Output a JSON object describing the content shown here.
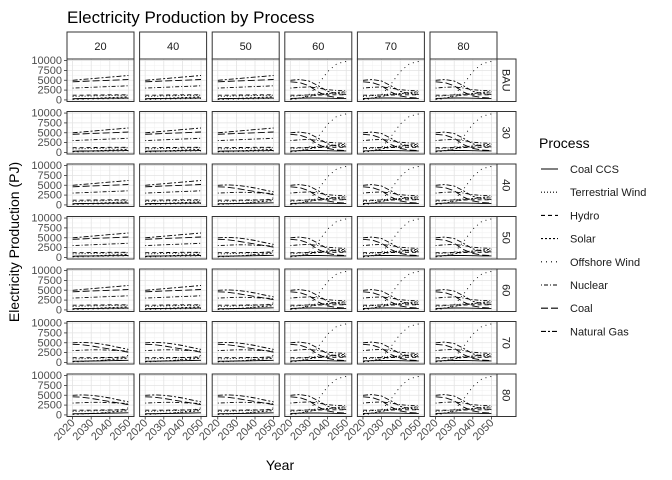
{
  "chart_data": {
    "type": "line",
    "title": "Electricity Production by Process",
    "xlabel": "Year",
    "ylabel": "Electricity Production (PJ)",
    "legend_title": "Process",
    "legend_position": "right",
    "grid": true,
    "col_facets": [
      "20",
      "40",
      "50",
      "60",
      "70",
      "80"
    ],
    "row_facets": [
      "BAU",
      "30",
      "40",
      "50",
      "60",
      "70",
      "80"
    ],
    "x": [
      2020,
      2025,
      2030,
      2035,
      2040,
      2045,
      2050
    ],
    "xticks": [
      2020,
      2030,
      2040,
      2050
    ],
    "xlim": [
      2017,
      2053
    ],
    "yticks": [
      0,
      2500,
      5000,
      7500,
      10000
    ],
    "ytick_labels": [
      "0",
      "2500",
      "5000",
      "7500",
      "10000"
    ],
    "ylim": [
      -400,
      10400
    ],
    "processes": [
      {
        "name": "Coal CCS",
        "dash": "solid"
      },
      {
        "name": "Terrestrial Wind",
        "dash": "dotted"
      },
      {
        "name": "Hydro",
        "dash": "dashed"
      },
      {
        "name": "Solar",
        "dash": "shortdash"
      },
      {
        "name": "Offshore Wind",
        "dash": "sparsedot"
      },
      {
        "name": "Nuclear",
        "dash": "dotdash"
      },
      {
        "name": "Coal",
        "dash": "longdash"
      },
      {
        "name": "Natural Gas",
        "dash": "twodash"
      }
    ],
    "scenarios": {
      "low": {
        "Coal CCS": [
          300,
          350,
          400,
          400,
          450,
          450,
          500
        ],
        "Terrestrial Wind": [
          900,
          950,
          1000,
          1050,
          1100,
          1150,
          1200
        ],
        "Hydro": [
          1200,
          1200,
          1250,
          1250,
          1300,
          1300,
          1300
        ],
        "Solar": [
          200,
          300,
          400,
          500,
          600,
          700,
          800
        ],
        "Offshore Wind": [
          100,
          150,
          200,
          250,
          300,
          350,
          400
        ],
        "Nuclear": [
          3000,
          3100,
          3200,
          3300,
          3400,
          3500,
          3600
        ],
        "Coal": [
          4600,
          4700,
          4800,
          4900,
          5000,
          5100,
          5200
        ],
        "Natural Gas": [
          5000,
          5200,
          5400,
          5600,
          5800,
          6000,
          6200
        ]
      },
      "mid": {
        "Coal CCS": [
          300,
          300,
          350,
          400,
          450,
          500,
          550
        ],
        "Terrestrial Wind": [
          900,
          950,
          1000,
          1100,
          1200,
          1300,
          1400
        ],
        "Hydro": [
          1200,
          1200,
          1200,
          1250,
          1250,
          1300,
          1300
        ],
        "Solar": [
          200,
          300,
          400,
          500,
          700,
          900,
          1100
        ],
        "Offshore Wind": [
          100,
          200,
          300,
          500,
          800,
          1200,
          1800
        ],
        "Nuclear": [
          3000,
          3100,
          3200,
          3200,
          3100,
          3000,
          2900
        ],
        "Coal": [
          4600,
          4500,
          4200,
          3800,
          3400,
          3000,
          2600
        ],
        "Natural Gas": [
          5000,
          5100,
          5000,
          4700,
          4300,
          3800,
          3300
        ]
      },
      "high": {
        "Coal CCS": [
          400,
          450,
          500,
          500,
          450,
          400,
          400
        ],
        "Terrestrial Wind": [
          900,
          1100,
          1300,
          1500,
          1600,
          1700,
          1800
        ],
        "Hydro": [
          1200,
          1200,
          1250,
          1250,
          1300,
          1300,
          1300
        ],
        "Solar": [
          200,
          500,
          900,
          1300,
          1600,
          1900,
          2100
        ],
        "Offshore Wind": [
          100,
          300,
          1200,
          4000,
          7200,
          9200,
          9800
        ],
        "Nuclear": [
          3000,
          3200,
          3300,
          3000,
          2600,
          2400,
          2300
        ],
        "Coal": [
          4600,
          4400,
          3600,
          2000,
          1000,
          600,
          500
        ],
        "Natural Gas": [
          5000,
          5200,
          4800,
          3600,
          2200,
          1600,
          1400
        ]
      }
    },
    "panel_scenario_by_column": [
      "low",
      "low",
      "low",
      "high",
      "high",
      "high"
    ],
    "panel_scenario_overrides": {
      "BAU": [
        "low",
        "low",
        "low",
        "high",
        "high",
        "high"
      ],
      "30": [
        "low",
        "low",
        "low",
        "high",
        "high",
        "high"
      ],
      "40": [
        "low",
        "low",
        "mid",
        "high",
        "high",
        "high"
      ],
      "50": [
        "low",
        "low",
        "mid",
        "high",
        "high",
        "high"
      ],
      "60": [
        "low",
        "low",
        "mid",
        "high",
        "high",
        "high"
      ],
      "70": [
        "mid",
        "mid",
        "mid",
        "high",
        "high",
        "high"
      ],
      "80": [
        "mid",
        "mid",
        "mid",
        "high",
        "high",
        "high"
      ]
    }
  }
}
